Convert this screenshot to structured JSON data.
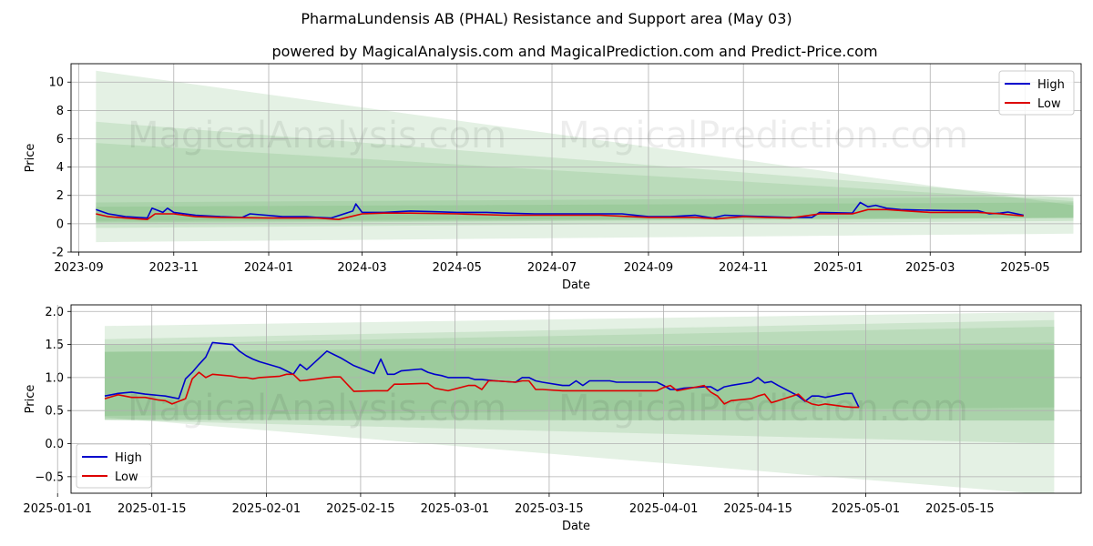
{
  "title": "PharmaLundensis AB (PHAL) Resistance and Support area (May 03)",
  "subtitle": "powered by MagicalAnalysis.com and MagicalPrediction.com and Predict-Price.com",
  "watermarks": [
    "MagicalAnalysis.com",
    "MagicalPrediction.com"
  ],
  "colors": {
    "high": "#0000cc",
    "low": "#dd0000",
    "band": "#5aaa5a",
    "grid": "#b0b0b0"
  },
  "chart_data": [
    {
      "type": "line",
      "xlabel": "Date",
      "ylabel": "Price",
      "xlim": [
        "2023-08-27",
        "2025-06-06"
      ],
      "ylim": [
        -2,
        11.3
      ],
      "yticks": [
        -2,
        0,
        2,
        4,
        6,
        8,
        10
      ],
      "xticks": [
        "2023-09",
        "2023-11",
        "2024-01",
        "2024-03",
        "2024-05",
        "2024-07",
        "2024-09",
        "2024-11",
        "2025-01",
        "2025-03",
        "2025-05"
      ],
      "xtick_dates": [
        "2023-09-01",
        "2023-11-01",
        "2024-01-01",
        "2024-03-01",
        "2024-05-01",
        "2024-07-01",
        "2024-09-01",
        "2024-11-01",
        "2025-01-01",
        "2025-03-01",
        "2025-05-01"
      ],
      "grid": true,
      "legend": "top-right",
      "bands": [
        {
          "x": [
            "2023-09-12",
            "2025-06-01"
          ],
          "upper": [
            10.8,
            1.3
          ],
          "lower": [
            -1.3,
            -0.7
          ]
        },
        {
          "x": [
            "2023-09-12",
            "2025-06-01"
          ],
          "upper": [
            7.2,
            1.8
          ],
          "lower": [
            -0.3,
            0.2
          ]
        },
        {
          "x": [
            "2023-09-12",
            "2025-06-01"
          ],
          "upper": [
            5.7,
            1.6
          ],
          "lower": [
            0.0,
            0.4
          ]
        },
        {
          "x": [
            "2023-09-12",
            "2025-06-01"
          ],
          "upper": [
            1.5,
            1.9
          ],
          "lower": [
            0.1,
            0.4
          ]
        },
        {
          "x": [
            "2023-09-12",
            "2025-06-01"
          ],
          "upper": [
            1.2,
            1.5
          ],
          "lower": [
            0.2,
            0.45
          ]
        }
      ],
      "series": [
        {
          "name": "High",
          "x": [
            "2023-09-12",
            "2023-09-20",
            "2023-10-01",
            "2023-10-15",
            "2023-10-18",
            "2023-10-25",
            "2023-10-28",
            "2023-11-01",
            "2023-11-15",
            "2023-12-01",
            "2023-12-15",
            "2023-12-20",
            "2024-01-10",
            "2024-01-25",
            "2024-02-01",
            "2024-02-10",
            "2024-02-24",
            "2024-02-26",
            "2024-03-01",
            "2024-03-15",
            "2024-04-01",
            "2024-04-15",
            "2024-05-01",
            "2024-05-20",
            "2024-06-01",
            "2024-06-20",
            "2024-07-01",
            "2024-07-20",
            "2024-08-01",
            "2024-08-15",
            "2024-09-01",
            "2024-09-15",
            "2024-10-01",
            "2024-10-12",
            "2024-10-20",
            "2024-11-01",
            "2024-11-15",
            "2024-12-01",
            "2024-12-15",
            "2024-12-20",
            "2025-01-10",
            "2025-01-15",
            "2025-01-20",
            "2025-01-25",
            "2025-02-01",
            "2025-02-10",
            "2025-03-01",
            "2025-03-15",
            "2025-04-01",
            "2025-04-08",
            "2025-04-15",
            "2025-04-20",
            "2025-04-30"
          ],
          "values": [
            1.0,
            0.7,
            0.5,
            0.4,
            1.1,
            0.8,
            1.1,
            0.8,
            0.6,
            0.5,
            0.45,
            0.7,
            0.5,
            0.5,
            0.45,
            0.4,
            0.9,
            1.4,
            0.8,
            0.8,
            0.9,
            0.85,
            0.8,
            0.8,
            0.75,
            0.7,
            0.7,
            0.7,
            0.7,
            0.7,
            0.5,
            0.5,
            0.6,
            0.4,
            0.6,
            0.55,
            0.5,
            0.45,
            0.45,
            0.8,
            0.75,
            1.5,
            1.2,
            1.3,
            1.1,
            1.0,
            0.95,
            0.93,
            0.92,
            0.7,
            0.75,
            0.83,
            0.6
          ]
        },
        {
          "name": "Low",
          "x": [
            "2023-09-12",
            "2023-09-20",
            "2023-10-01",
            "2023-10-15",
            "2023-10-20",
            "2023-11-01",
            "2023-11-15",
            "2023-12-01",
            "2024-01-01",
            "2024-02-01",
            "2024-02-15",
            "2024-03-01",
            "2024-03-15",
            "2024-04-01",
            "2024-05-01",
            "2024-06-01",
            "2024-07-01",
            "2024-08-01",
            "2024-09-01",
            "2024-10-01",
            "2024-10-15",
            "2024-11-01",
            "2024-11-15",
            "2024-12-01",
            "2024-12-20",
            "2025-01-10",
            "2025-01-20",
            "2025-02-01",
            "2025-02-15",
            "2025-03-01",
            "2025-03-15",
            "2025-04-01",
            "2025-04-15",
            "2025-04-30"
          ],
          "values": [
            0.7,
            0.5,
            0.4,
            0.3,
            0.7,
            0.7,
            0.5,
            0.45,
            0.4,
            0.4,
            0.3,
            0.7,
            0.75,
            0.75,
            0.7,
            0.6,
            0.6,
            0.6,
            0.45,
            0.45,
            0.35,
            0.5,
            0.45,
            0.4,
            0.7,
            0.7,
            1.0,
            1.0,
            0.9,
            0.8,
            0.8,
            0.8,
            0.7,
            0.55
          ]
        }
      ]
    },
    {
      "type": "line",
      "xlabel": "Date",
      "ylabel": "Price",
      "xlim": [
        "2025-01-03",
        "2025-06-02"
      ],
      "ylim": [
        -0.75,
        2.1
      ],
      "yticks": [
        -0.5,
        0.0,
        0.5,
        1.0,
        1.5,
        2.0
      ],
      "ytick_labels": [
        "−0.5",
        "0.0",
        "0.5",
        "1.0",
        "1.5",
        "2.0"
      ],
      "xticks": [
        "2025-01-01",
        "2025-01-15",
        "2025-02-01",
        "2025-02-15",
        "2025-03-01",
        "2025-03-15",
        "2025-04-01",
        "2025-04-15",
        "2025-05-01",
        "2025-05-15"
      ],
      "grid": true,
      "legend": "bottom-left",
      "bands": [
        {
          "x": [
            "2025-01-08",
            "2025-05-29"
          ],
          "upper": [
            1.78,
            1.99
          ],
          "lower": [
            0.4,
            -0.78
          ]
        },
        {
          "x": [
            "2025-01-08",
            "2025-05-29"
          ],
          "upper": [
            1.58,
            1.87
          ],
          "lower": [
            0.36,
            0.0
          ]
        },
        {
          "x": [
            "2025-01-08",
            "2025-05-29"
          ],
          "upper": [
            1.5,
            1.77
          ],
          "lower": [
            0.36,
            0.35
          ]
        },
        {
          "x": [
            "2025-01-08",
            "2025-05-29"
          ],
          "upper": [
            1.39,
            1.53
          ],
          "lower": [
            0.36,
            0.35
          ]
        },
        {
          "x": [
            "2025-01-08",
            "2025-05-29"
          ],
          "upper": [
            1.39,
            1.42
          ],
          "lower": [
            0.42,
            0.55
          ]
        }
      ],
      "series": [
        {
          "name": "High",
          "x": [
            "2025-01-08",
            "2025-01-10",
            "2025-01-12",
            "2025-01-14",
            "2025-01-16",
            "2025-01-17",
            "2025-01-18",
            "2025-01-19",
            "2025-01-20",
            "2025-01-21",
            "2025-01-22",
            "2025-01-23",
            "2025-01-24",
            "2025-01-27",
            "2025-01-28",
            "2025-01-29",
            "2025-01-30",
            "2025-01-31",
            "2025-02-03",
            "2025-02-04",
            "2025-02-05",
            "2025-02-06",
            "2025-02-07",
            "2025-02-10",
            "2025-02-11",
            "2025-02-12",
            "2025-02-14",
            "2025-02-17",
            "2025-02-18",
            "2025-02-19",
            "2025-02-20",
            "2025-02-21",
            "2025-02-24",
            "2025-02-25",
            "2025-02-26",
            "2025-02-27",
            "2025-02-28",
            "2025-03-03",
            "2025-03-04",
            "2025-03-05",
            "2025-03-06",
            "2025-03-07",
            "2025-03-10",
            "2025-03-11",
            "2025-03-12",
            "2025-03-13",
            "2025-03-14",
            "2025-03-17",
            "2025-03-18",
            "2025-03-19",
            "2025-03-20",
            "2025-03-21",
            "2025-03-24",
            "2025-03-25",
            "2025-03-26",
            "2025-03-27",
            "2025-03-28",
            "2025-03-31",
            "2025-04-01",
            "2025-04-02",
            "2025-04-03",
            "2025-04-04",
            "2025-04-07",
            "2025-04-08",
            "2025-04-09",
            "2025-04-10",
            "2025-04-11",
            "2025-04-14",
            "2025-04-15",
            "2025-04-16",
            "2025-04-17",
            "2025-04-18",
            "2025-04-21",
            "2025-04-22",
            "2025-04-23",
            "2025-04-24",
            "2025-04-25",
            "2025-04-28",
            "2025-04-29",
            "2025-04-30"
          ],
          "values": [
            0.72,
            0.76,
            0.78,
            0.75,
            0.73,
            0.72,
            0.7,
            0.68,
            0.98,
            1.08,
            1.2,
            1.31,
            1.53,
            1.5,
            1.4,
            1.33,
            1.28,
            1.24,
            1.15,
            1.1,
            1.05,
            1.2,
            1.12,
            1.4,
            1.35,
            1.3,
            1.18,
            1.06,
            1.28,
            1.05,
            1.05,
            1.1,
            1.13,
            1.08,
            1.05,
            1.03,
            1.0,
            1.0,
            0.97,
            0.97,
            0.96,
            0.95,
            0.93,
            1.0,
            1.0,
            0.95,
            0.93,
            0.88,
            0.88,
            0.95,
            0.88,
            0.95,
            0.95,
            0.93,
            0.93,
            0.93,
            0.93,
            0.93,
            0.88,
            0.82,
            0.82,
            0.84,
            0.86,
            0.86,
            0.8,
            0.86,
            0.88,
            0.93,
            1.0,
            0.92,
            0.94,
            0.88,
            0.72,
            0.64,
            0.72,
            0.72,
            0.7,
            0.76,
            0.76,
            0.55
          ]
        },
        {
          "name": "Low",
          "x": [
            "2025-01-08",
            "2025-01-10",
            "2025-01-12",
            "2025-01-14",
            "2025-01-16",
            "2025-01-17",
            "2025-01-18",
            "2025-01-20",
            "2025-01-21",
            "2025-01-22",
            "2025-01-23",
            "2025-01-24",
            "2025-01-27",
            "2025-01-28",
            "2025-01-29",
            "2025-01-30",
            "2025-01-31",
            "2025-02-03",
            "2025-02-04",
            "2025-02-05",
            "2025-02-06",
            "2025-02-07",
            "2025-02-10",
            "2025-02-11",
            "2025-02-12",
            "2025-02-14",
            "2025-02-17",
            "2025-02-18",
            "2025-02-19",
            "2025-02-20",
            "2025-02-21",
            "2025-02-24",
            "2025-02-25",
            "2025-02-26",
            "2025-02-27",
            "2025-02-28",
            "2025-03-03",
            "2025-03-04",
            "2025-03-05",
            "2025-03-06",
            "2025-03-07",
            "2025-03-10",
            "2025-03-11",
            "2025-03-12",
            "2025-03-13",
            "2025-03-14",
            "2025-03-17",
            "2025-03-18",
            "2025-03-19",
            "2025-03-20",
            "2025-03-21",
            "2025-03-24",
            "2025-03-25",
            "2025-03-26",
            "2025-03-27",
            "2025-03-28",
            "2025-03-31",
            "2025-04-01",
            "2025-04-02",
            "2025-04-03",
            "2025-04-04",
            "2025-04-07",
            "2025-04-08",
            "2025-04-09",
            "2025-04-10",
            "2025-04-11",
            "2025-04-14",
            "2025-04-15",
            "2025-04-16",
            "2025-04-17",
            "2025-04-18",
            "2025-04-21",
            "2025-04-22",
            "2025-04-23",
            "2025-04-24",
            "2025-04-25",
            "2025-04-28",
            "2025-04-29",
            "2025-04-30"
          ],
          "values": [
            0.68,
            0.74,
            0.7,
            0.7,
            0.66,
            0.65,
            0.6,
            0.68,
            0.98,
            1.08,
            1.0,
            1.05,
            1.02,
            1.0,
            1.0,
            0.98,
            1.0,
            1.02,
            1.05,
            1.05,
            0.95,
            0.96,
            1.0,
            1.01,
            1.01,
            0.79,
            0.8,
            0.8,
            0.8,
            0.9,
            0.9,
            0.91,
            0.91,
            0.84,
            0.82,
            0.8,
            0.88,
            0.88,
            0.82,
            0.95,
            0.95,
            0.93,
            0.95,
            0.95,
            0.82,
            0.82,
            0.8,
            0.8,
            0.8,
            0.8,
            0.8,
            0.8,
            0.8,
            0.8,
            0.8,
            0.8,
            0.8,
            0.85,
            0.88,
            0.8,
            0.82,
            0.88,
            0.78,
            0.72,
            0.6,
            0.65,
            0.68,
            0.72,
            0.75,
            0.62,
            0.65,
            0.75,
            0.65,
            0.6,
            0.58,
            0.6,
            0.56,
            0.55,
            0.55
          ]
        }
      ]
    }
  ]
}
